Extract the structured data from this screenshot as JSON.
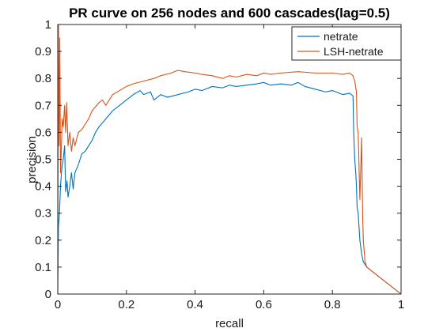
{
  "chart_data": {
    "type": "line",
    "title": "PR curve on 256 nodes and 600 cascades(lag=0.5)",
    "xlabel": "recall",
    "ylabel": "precision",
    "xlim": [
      0,
      1
    ],
    "ylim": [
      0,
      1
    ],
    "xticks": [
      "0",
      "0.2",
      "0.4",
      "0.6",
      "0.8",
      "1"
    ],
    "yticks": [
      "0",
      "0.1",
      "0.2",
      "0.3",
      "0.4",
      "0.5",
      "0.6",
      "0.7",
      "0.8",
      "0.9",
      "1"
    ],
    "grid": false,
    "legend_position": "top-right",
    "series": [
      {
        "name": "netrate",
        "color": "#0072BD",
        "points": [
          [
            0.0,
            0.0
          ],
          [
            0.002,
            0.25
          ],
          [
            0.005,
            0.3
          ],
          [
            0.008,
            0.4
          ],
          [
            0.012,
            0.47
          ],
          [
            0.016,
            0.5
          ],
          [
            0.02,
            0.55
          ],
          [
            0.023,
            0.38
          ],
          [
            0.027,
            0.42
          ],
          [
            0.03,
            0.36
          ],
          [
            0.035,
            0.4
          ],
          [
            0.04,
            0.45
          ],
          [
            0.045,
            0.39
          ],
          [
            0.05,
            0.45
          ],
          [
            0.06,
            0.48
          ],
          [
            0.07,
            0.52
          ],
          [
            0.08,
            0.53
          ],
          [
            0.09,
            0.55
          ],
          [
            0.1,
            0.57
          ],
          [
            0.11,
            0.6
          ],
          [
            0.12,
            0.62
          ],
          [
            0.14,
            0.65
          ],
          [
            0.16,
            0.68
          ],
          [
            0.18,
            0.7
          ],
          [
            0.2,
            0.72
          ],
          [
            0.22,
            0.74
          ],
          [
            0.24,
            0.755
          ],
          [
            0.25,
            0.74
          ],
          [
            0.27,
            0.75
          ],
          [
            0.28,
            0.72
          ],
          [
            0.3,
            0.74
          ],
          [
            0.32,
            0.73
          ],
          [
            0.35,
            0.74
          ],
          [
            0.38,
            0.75
          ],
          [
            0.4,
            0.76
          ],
          [
            0.42,
            0.755
          ],
          [
            0.45,
            0.77
          ],
          [
            0.48,
            0.765
          ],
          [
            0.5,
            0.775
          ],
          [
            0.52,
            0.77
          ],
          [
            0.55,
            0.775
          ],
          [
            0.58,
            0.78
          ],
          [
            0.6,
            0.785
          ],
          [
            0.62,
            0.775
          ],
          [
            0.65,
            0.78
          ],
          [
            0.68,
            0.775
          ],
          [
            0.7,
            0.785
          ],
          [
            0.72,
            0.77
          ],
          [
            0.75,
            0.76
          ],
          [
            0.78,
            0.75
          ],
          [
            0.8,
            0.755
          ],
          [
            0.83,
            0.74
          ],
          [
            0.85,
            0.745
          ],
          [
            0.86,
            0.735
          ],
          [
            0.862,
            0.6
          ],
          [
            0.865,
            0.5
          ],
          [
            0.868,
            0.45
          ],
          [
            0.87,
            0.4
          ],
          [
            0.872,
            0.32
          ],
          [
            0.875,
            0.3
          ],
          [
            0.88,
            0.2
          ],
          [
            0.885,
            0.15
          ],
          [
            0.89,
            0.12
          ],
          [
            0.9,
            0.1
          ],
          [
            1.0,
            0.0
          ]
        ]
      },
      {
        "name": "LSH-netrate",
        "color": "#D95319",
        "points": [
          [
            0.0,
            0.0
          ],
          [
            0.002,
            1.0
          ],
          [
            0.004,
            0.55
          ],
          [
            0.006,
            0.95
          ],
          [
            0.008,
            0.45
          ],
          [
            0.01,
            0.52
          ],
          [
            0.013,
            0.65
          ],
          [
            0.016,
            0.62
          ],
          [
            0.02,
            0.7
          ],
          [
            0.023,
            0.6
          ],
          [
            0.026,
            0.71
          ],
          [
            0.03,
            0.55
          ],
          [
            0.035,
            0.6
          ],
          [
            0.04,
            0.53
          ],
          [
            0.045,
            0.58
          ],
          [
            0.05,
            0.55
          ],
          [
            0.06,
            0.6
          ],
          [
            0.07,
            0.61
          ],
          [
            0.08,
            0.63
          ],
          [
            0.09,
            0.65
          ],
          [
            0.1,
            0.68
          ],
          [
            0.12,
            0.71
          ],
          [
            0.13,
            0.72
          ],
          [
            0.14,
            0.7
          ],
          [
            0.16,
            0.74
          ],
          [
            0.18,
            0.755
          ],
          [
            0.2,
            0.77
          ],
          [
            0.22,
            0.78
          ],
          [
            0.25,
            0.79
          ],
          [
            0.28,
            0.8
          ],
          [
            0.3,
            0.81
          ],
          [
            0.33,
            0.82
          ],
          [
            0.35,
            0.83
          ],
          [
            0.37,
            0.825
          ],
          [
            0.4,
            0.82
          ],
          [
            0.42,
            0.815
          ],
          [
            0.45,
            0.81
          ],
          [
            0.48,
            0.8
          ],
          [
            0.5,
            0.81
          ],
          [
            0.52,
            0.805
          ],
          [
            0.55,
            0.815
          ],
          [
            0.58,
            0.81
          ],
          [
            0.6,
            0.82
          ],
          [
            0.62,
            0.815
          ],
          [
            0.65,
            0.82
          ],
          [
            0.7,
            0.825
          ],
          [
            0.75,
            0.82
          ],
          [
            0.8,
            0.82
          ],
          [
            0.83,
            0.815
          ],
          [
            0.85,
            0.82
          ],
          [
            0.86,
            0.81
          ],
          [
            0.865,
            0.79
          ],
          [
            0.87,
            0.75
          ],
          [
            0.872,
            0.62
          ],
          [
            0.875,
            0.6
          ],
          [
            0.878,
            0.45
          ],
          [
            0.88,
            0.35
          ],
          [
            0.885,
            0.58
          ],
          [
            0.888,
            0.3
          ],
          [
            0.89,
            0.2
          ],
          [
            0.895,
            0.12
          ],
          [
            0.9,
            0.1
          ],
          [
            1.0,
            0.0
          ]
        ]
      }
    ]
  }
}
